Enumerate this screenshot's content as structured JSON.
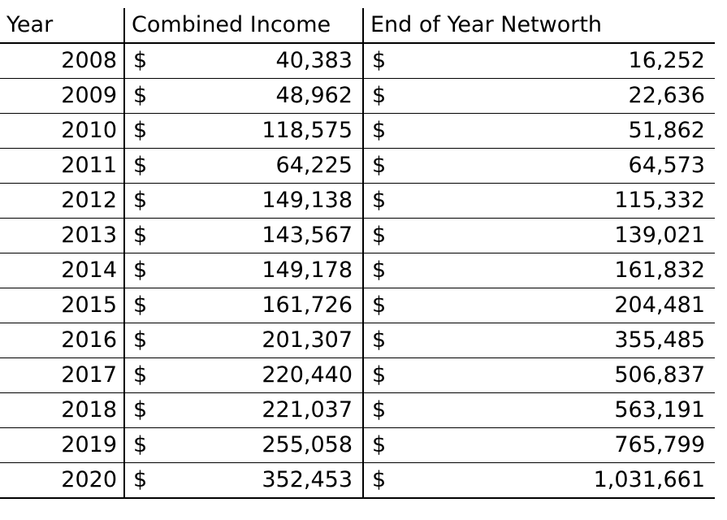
{
  "table": {
    "headers": [
      "Year",
      "Combined Income",
      "End of Year Networth"
    ],
    "currency_symbol": "$",
    "rows": [
      {
        "year": "2008",
        "income": "40,383",
        "networth": "16,252"
      },
      {
        "year": "2009",
        "income": "48,962",
        "networth": "22,636"
      },
      {
        "year": "2010",
        "income": "118,575",
        "networth": "51,862"
      },
      {
        "year": "2011",
        "income": "64,225",
        "networth": "64,573"
      },
      {
        "year": "2012",
        "income": "149,138",
        "networth": "115,332"
      },
      {
        "year": "2013",
        "income": "143,567",
        "networth": "139,021"
      },
      {
        "year": "2014",
        "income": "149,178",
        "networth": "161,832"
      },
      {
        "year": "2015",
        "income": "161,726",
        "networth": "204,481"
      },
      {
        "year": "2016",
        "income": "201,307",
        "networth": "355,485"
      },
      {
        "year": "2017",
        "income": "220,440",
        "networth": "506,837"
      },
      {
        "year": "2018",
        "income": "221,037",
        "networth": "563,191"
      },
      {
        "year": "2019",
        "income": "255,058",
        "networth": "765,799"
      },
      {
        "year": "2020",
        "income": "352,453",
        "networth": "1,031,661"
      }
    ]
  }
}
